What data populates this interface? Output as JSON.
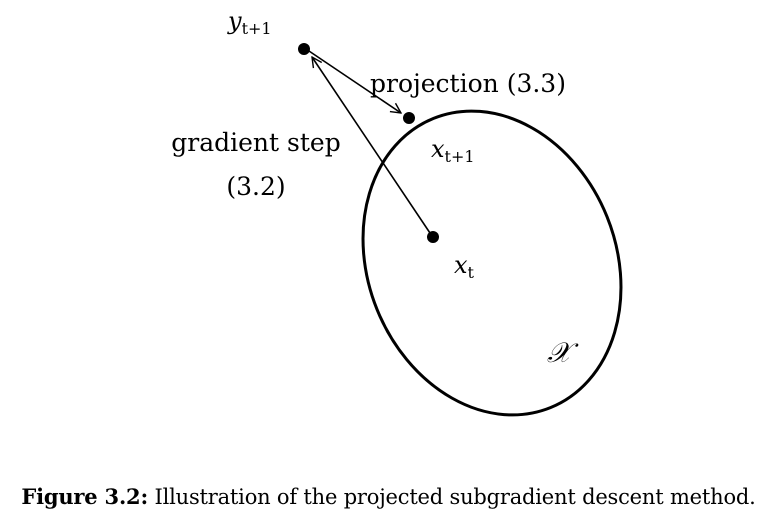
{
  "labels": {
    "y_next_base": "y",
    "y_next_sub": "t+1",
    "projection": "projection (3.3)",
    "gradient_step_line1": "gradient step",
    "gradient_step_line2": "(3.2)",
    "x_next_base": "x",
    "x_next_sub": "t+1",
    "x_t_base": "x",
    "x_t_sub": "t",
    "set_symbol": "𝒳"
  },
  "caption": {
    "label": "Figure 3.2:",
    "text": " Illustration of the projected subgradient descent method."
  }
}
